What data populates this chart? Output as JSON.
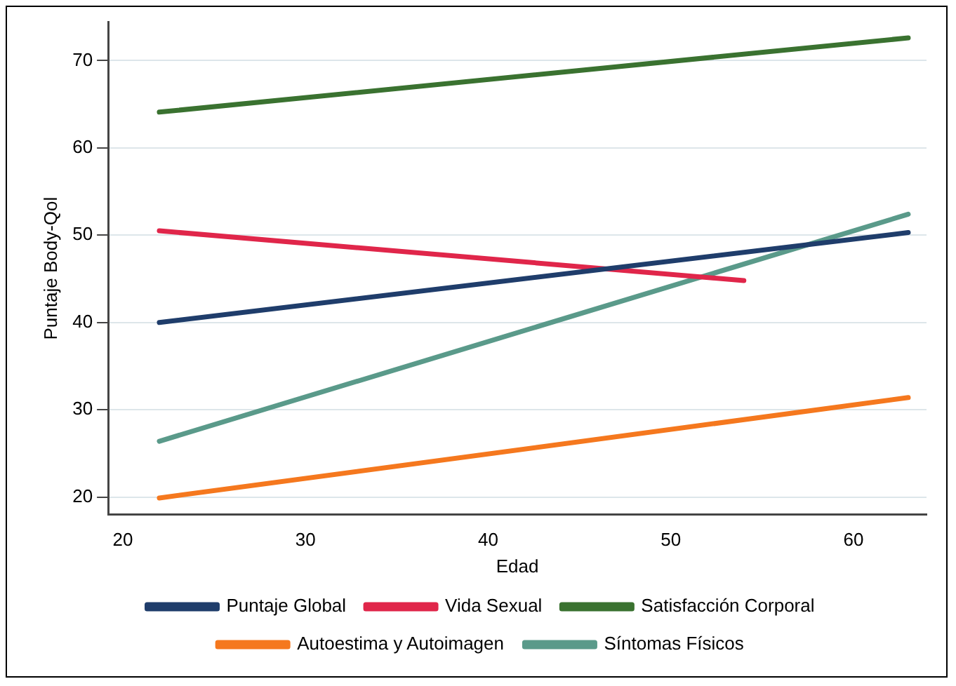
{
  "chart_data": {
    "type": "line",
    "xlabel": "Edad",
    "ylabel": "Puntaje Body-Qol",
    "xlim": [
      19.2,
      64
    ],
    "xticks": [
      20,
      30,
      40,
      50,
      60
    ],
    "ylim": [
      18,
      74.4
    ],
    "yticks": [
      20,
      30,
      40,
      50,
      60,
      70
    ],
    "grid": "y",
    "legend": "bottom",
    "marker": "none",
    "line_style": "solid",
    "series": [
      {
        "name": "Puntaje Global",
        "color": "#1f3d6b",
        "x": [
          22,
          63
        ],
        "values": [
          40,
          50.3
        ]
      },
      {
        "name": "Vida Sexual",
        "color": "#e0264a",
        "x": [
          22,
          54
        ],
        "values": [
          50.5,
          44.8
        ]
      },
      {
        "name": "Satisfacción Corporal",
        "color": "#3a7230",
        "x": [
          22,
          63
        ],
        "values": [
          64.1,
          72.6
        ]
      },
      {
        "name": "Autoestima y Autoimagen",
        "color": "#f5781e",
        "x": [
          22,
          63
        ],
        "values": [
          19.9,
          31.4
        ]
      },
      {
        "name": "Síntomas Físicos",
        "color": "#5a9a8a",
        "x": [
          22,
          63
        ],
        "values": [
          26.4,
          52.4
        ]
      }
    ]
  }
}
